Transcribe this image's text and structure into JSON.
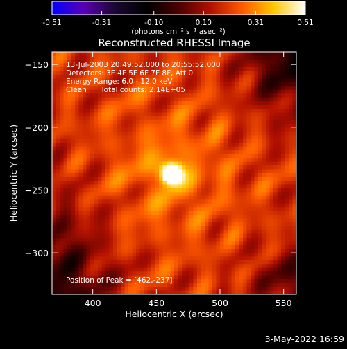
{
  "colorbar": {
    "tick_labels": [
      "-0.51",
      "-0.31",
      "-0.10",
      "0.10",
      "0.31",
      "0.51"
    ],
    "tick_values": [
      -0.51,
      -0.31,
      -0.1,
      0.1,
      0.31,
      0.51
    ],
    "range": [
      -0.51,
      0.51
    ],
    "unit_label": "(photons cm⁻² s⁻¹ asec⁻²)",
    "colors": [
      "#0000ff",
      "#5a00b4",
      "#1a0830",
      "#000000",
      "#4a0000",
      "#b01000",
      "#ff5a00",
      "#ffc800",
      "#ffffff"
    ]
  },
  "annotations": {
    "time": "13-Jul-2003 20:49:52.000 to 20:55:52.000",
    "detectors": "Detectors: 3F 4F 5F 6F 7F 8F, Att 0",
    "energy": "Energy Range: 6.0 - 12.0 keV",
    "method": "Clean",
    "counts": "Total counts: 2.14E+05",
    "peak": "Position of Peak = [462,-237]"
  },
  "footer_date": "3-May-2022 16:59",
  "chart_data": {
    "type": "heatmap",
    "title": "Reconstructed RHESSI Image",
    "xlabel": "Heliocentric X (arcsec)",
    "ylabel": "Heliocentric Y (arcsec)",
    "xlim": [
      368,
      560
    ],
    "ylim": [
      -333,
      -140
    ],
    "xticks": [
      400,
      450,
      500,
      550
    ],
    "xtick_labels": [
      "400",
      "450",
      "500",
      "550"
    ],
    "yticks": [
      -150,
      -200,
      -250,
      -300
    ],
    "ytick_labels": [
      "−150",
      "−200",
      "−250",
      "−300"
    ],
    "value_range": [
      -0.51,
      0.51
    ],
    "peak": {
      "x": 462,
      "y": -237,
      "value": 0.51
    }
  }
}
